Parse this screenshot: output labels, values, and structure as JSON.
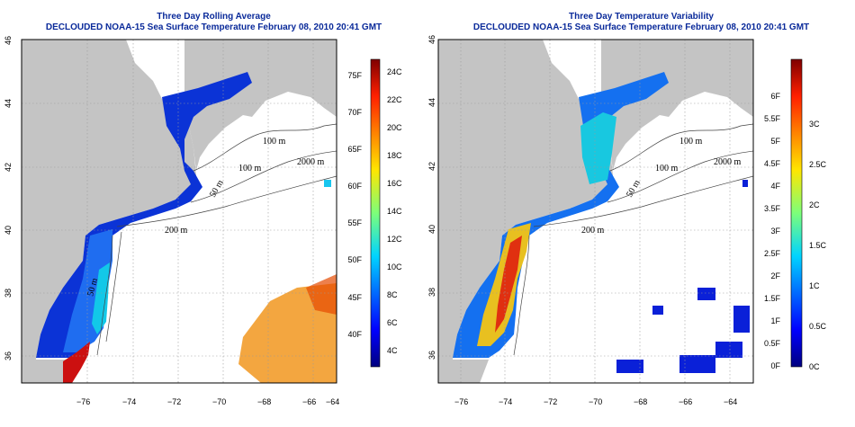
{
  "left_panel": {
    "title": "Three Day Rolling Average",
    "subtitle": "DECLOUDED NOAA-15 Sea Surface Temperature February 08, 2010 20:41 GMT",
    "colorbar": {
      "left_labels": [
        "75F",
        "70F",
        "65F",
        "60F",
        "55F",
        "50F",
        "45F",
        "40F"
      ],
      "right_labels": [
        "24C",
        "22C",
        "20C",
        "18C",
        "16C",
        "14C",
        "12C",
        "10C",
        "8C",
        "6C",
        "4C"
      ]
    }
  },
  "right_panel": {
    "title": "Three Day Temperature Variability",
    "subtitle": "DECLOUDED NOAA-15 Sea Surface Temperature February 08, 2010 20:41 GMT",
    "colorbar": {
      "left_labels": [
        "6F",
        "5.5F",
        "5F",
        "4.5F",
        "4F",
        "3.5F",
        "3F",
        "2.5F",
        "2F",
        "1.5F",
        "1F",
        "0.5F",
        "0F"
      ],
      "right_labels": [
        "3C",
        "2.5C",
        "2C",
        "1.5C",
        "1C",
        "0.5C",
        "0C"
      ]
    }
  },
  "axes": {
    "x_ticks": [
      "−76",
      "−74",
      "−72",
      "−70",
      "−68",
      "−66",
      "−64"
    ],
    "y_ticks": [
      "46",
      "44",
      "42",
      "40",
      "38",
      "36"
    ]
  },
  "contour_labels": [
    "100 m",
    "2000 m",
    "100 m",
    "50 m",
    "200 m",
    "50 m"
  ],
  "colors": {
    "land": "#c4c4c4",
    "title_blue": "#0a2a9a",
    "ocean_blank": "#ffffff"
  }
}
